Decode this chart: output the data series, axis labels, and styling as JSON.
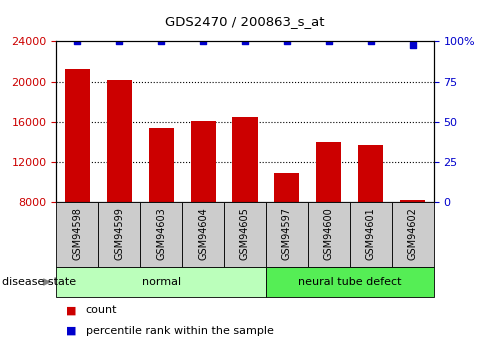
{
  "title": "GDS2470 / 200863_s_at",
  "samples": [
    "GSM94598",
    "GSM94599",
    "GSM94603",
    "GSM94604",
    "GSM94605",
    "GSM94597",
    "GSM94600",
    "GSM94601",
    "GSM94602"
  ],
  "counts": [
    21200,
    20200,
    15400,
    16100,
    16500,
    10900,
    14000,
    13700,
    8200
  ],
  "percentile_ranks": [
    100,
    100,
    100,
    100,
    100,
    100,
    100,
    100,
    98
  ],
  "bar_color": "#cc0000",
  "dot_color": "#0000cc",
  "ylim_left": [
    8000,
    24000
  ],
  "ylim_right": [
    0,
    100
  ],
  "yticks_left": [
    8000,
    12000,
    16000,
    20000,
    24000
  ],
  "yticks_right": [
    0,
    25,
    50,
    75,
    100
  ],
  "ytick_labels_right": [
    "0",
    "25",
    "50",
    "75",
    "100%"
  ],
  "groups": [
    {
      "label": "normal",
      "indices": [
        0,
        1,
        2,
        3,
        4
      ],
      "color": "#bbffbb"
    },
    {
      "label": "neural tube defect",
      "indices": [
        5,
        6,
        7,
        8
      ],
      "color": "#55ee55"
    }
  ],
  "disease_state_label": "disease state",
  "legend_count_label": "count",
  "legend_pct_label": "percentile rank within the sample",
  "bar_width": 0.6,
  "xtick_bg": "#cccccc",
  "grid_color": "#000000",
  "grid_linestyle": "dotted",
  "grid_linewidth": 0.8
}
